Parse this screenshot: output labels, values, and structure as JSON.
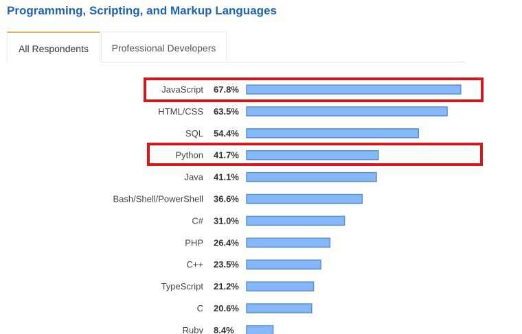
{
  "header": {
    "title": "Programming, Scripting, and Markup Languages"
  },
  "tabs": [
    {
      "label": "All Respondents",
      "active": true
    },
    {
      "label": "Professional Developers",
      "active": false
    }
  ],
  "colors": {
    "bar_fill": "#86b8f7",
    "bar_stroke": "#5a8fd3",
    "highlight": "#d8171b",
    "title": "#1f63b5",
    "active_tab_accent": "#e4b250"
  },
  "chart_data": {
    "type": "bar",
    "orientation": "horizontal",
    "categories": [
      "JavaScript",
      "HTML/CSS",
      "SQL",
      "Python",
      "Java",
      "Bash/Shell/PowerShell",
      "C#",
      "PHP",
      "C++",
      "TypeScript",
      "C",
      "Ruby"
    ],
    "values": [
      67.8,
      63.5,
      54.4,
      41.7,
      41.1,
      36.6,
      31.0,
      26.4,
      23.5,
      21.2,
      20.6,
      8.4
    ],
    "value_labels": [
      "67.8%",
      "63.5%",
      "54.4%",
      "41.7%",
      "41.1%",
      "36.6%",
      "31.0%",
      "26.4%",
      "23.5%",
      "21.2%",
      "20.6%",
      "8.4%"
    ],
    "unit": "%",
    "highlighted": [
      "JavaScript",
      "Python"
    ],
    "grid": false
  }
}
